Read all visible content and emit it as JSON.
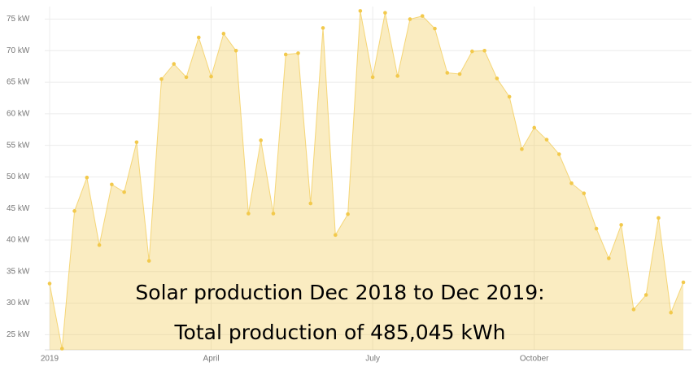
{
  "chart_data": {
    "type": "area",
    "annotations": [
      "Solar production Dec 2018 to Dec 2019:",
      "Total production of 485,045 kWh"
    ],
    "categories": [
      "2019",
      null,
      null,
      null,
      null,
      null,
      null,
      null,
      null,
      null,
      null,
      null,
      null,
      "April",
      null,
      null,
      null,
      null,
      null,
      null,
      null,
      null,
      null,
      null,
      null,
      null,
      "July",
      null,
      null,
      null,
      null,
      null,
      null,
      null,
      null,
      null,
      null,
      null,
      null,
      "October",
      null,
      null,
      null,
      null,
      null,
      null,
      null,
      null,
      null,
      null,
      null,
      null
    ],
    "values": [
      33.1,
      22.8,
      44.6,
      49.9,
      39.2,
      48.8,
      47.6,
      55.5,
      36.7,
      65.5,
      67.9,
      65.8,
      72.1,
      65.9,
      72.7,
      70.0,
      44.2,
      55.8,
      44.2,
      69.4,
      69.6,
      45.8,
      73.6,
      40.8,
      44.1,
      76.3,
      65.8,
      76.0,
      66.0,
      75.0,
      75.5,
      73.5,
      66.5,
      66.3,
      69.9,
      70.0,
      65.6,
      62.7,
      54.4,
      57.8,
      55.9,
      53.6,
      49.0,
      47.4,
      41.8,
      37.1,
      42.4,
      29.0,
      31.3,
      43.5,
      28.5,
      33.3
    ],
    "color": "#f2c94c",
    "ylim": [
      22.6,
      77
    ],
    "yticks": [
      {
        "value": 25,
        "label": "25 kW"
      },
      {
        "value": 30,
        "label": "30 kW"
      },
      {
        "value": 35,
        "label": "35 kW"
      },
      {
        "value": 40,
        "label": "40 kW"
      },
      {
        "value": 45,
        "label": "45 kW"
      },
      {
        "value": 50,
        "label": "50 kW"
      },
      {
        "value": 55,
        "label": "55 kW"
      },
      {
        "value": 60,
        "label": "60 kW"
      },
      {
        "value": 65,
        "label": "65 kW"
      },
      {
        "value": 70,
        "label": "70 kW"
      },
      {
        "value": 75,
        "label": "75 kW"
      }
    ],
    "grid": true
  }
}
